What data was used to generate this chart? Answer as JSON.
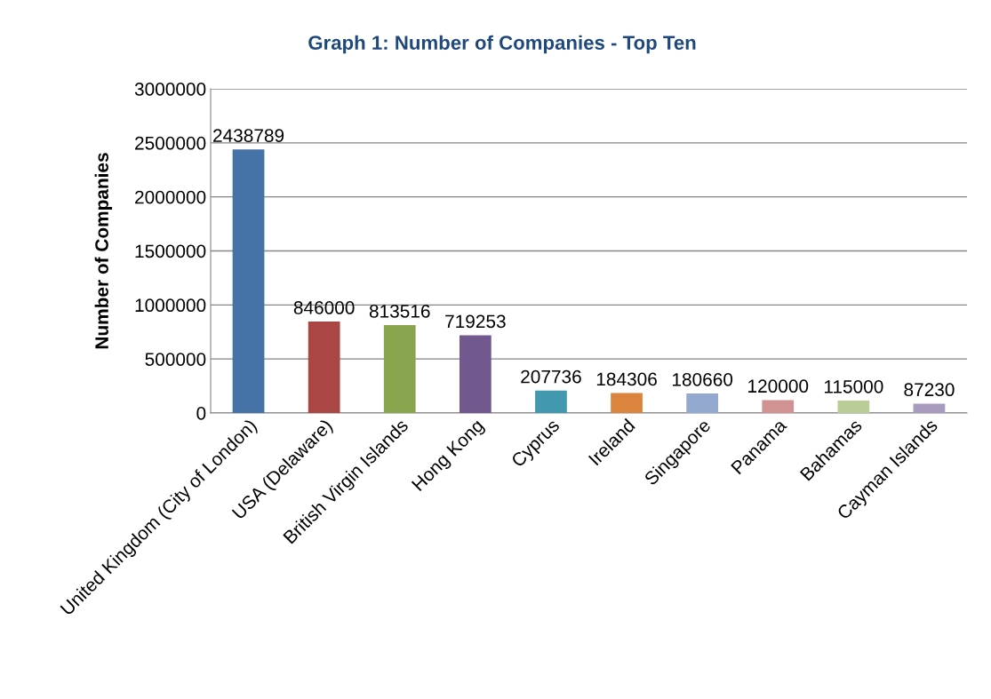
{
  "chart_data": {
    "type": "bar",
    "title": "Graph 1: Number of Companies - Top Ten",
    "ylabel": "Number of Companies",
    "categories": [
      "United Kingdom (City of London)",
      "USA (Delaware)",
      "British Virgin Islands",
      "Hong Kong",
      "Cyprus",
      "Ireland",
      "Singapore",
      "Panama",
      "Bahamas",
      "Cayman Islands"
    ],
    "values": [
      2438789,
      846000,
      813516,
      719253,
      207736,
      184306,
      180660,
      120000,
      115000,
      87230
    ],
    "colors": [
      "#4572a7",
      "#aa4643",
      "#89a54e",
      "#71588f",
      "#4198af",
      "#db843d",
      "#93a9cf",
      "#d19392",
      "#b9cd96",
      "#a99bbd"
    ],
    "ylim": [
      0,
      3000000
    ],
    "yticks": [
      0,
      500000,
      1000000,
      1500000,
      2000000,
      2500000,
      3000000
    ],
    "grid": "y",
    "data_labels": true,
    "legend": false
  }
}
